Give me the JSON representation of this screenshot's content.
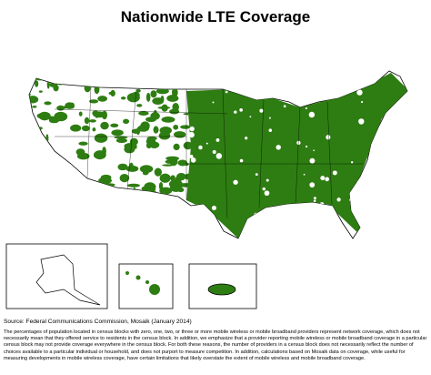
{
  "header": {
    "title": "Nationwide LTE Coverage"
  },
  "footer": {
    "source": "Source: Federal Communications Commission, Mosaik (January 2014)",
    "note": "The percentages of population located in census blocks with zero, one, two, or three or more mobile wireless or mobile broadband providers represent network coverage, which does not necessarily mean that they offered service to residents in the census block. In addition, we emphasize that a provider reporting mobile wireless or mobile broadband coverage in a particular census block may not provide coverage everywhere in the census block. For both these reasons, the number of providers in a census block does not necessarily reflect the number of choices available to a particular individual or household, and does not purport to measure competition. In addition, calculations based on Mosaik data on coverage, while useful for measuring developments in mobile wireless coverage, have certain limitations that likely overstate the extent of mobile wireless and mobile broadband coverage."
  }
}
